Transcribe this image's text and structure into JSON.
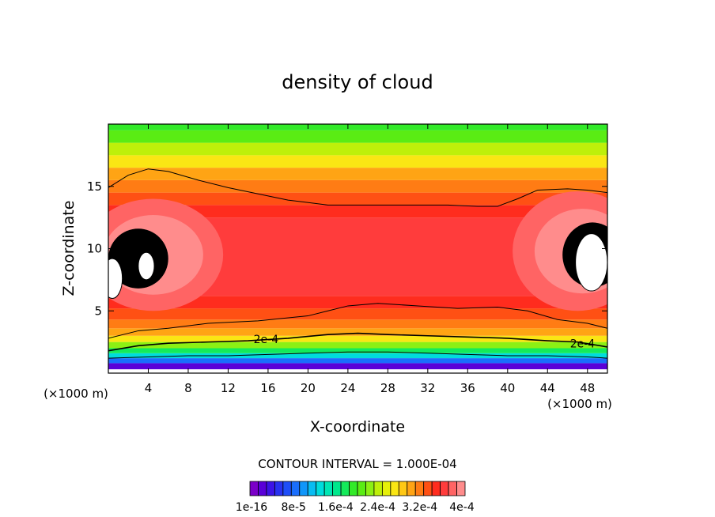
{
  "chart_data": {
    "type": "heatmap",
    "title": "density of cloud",
    "xlabel": "X-coordinate",
    "ylabel": "Z-coordinate",
    "x_unit_label": "(×1000 m)",
    "xlim": [
      0,
      50
    ],
    "ylim": [
      0,
      20
    ],
    "x_ticks": [
      4,
      8,
      12,
      16,
      20,
      24,
      28,
      32,
      36,
      40,
      44,
      48
    ],
    "y_ticks": [
      5,
      10,
      15
    ],
    "contour_interval_text": "CONTOUR INTERVAL = 1.000E-04",
    "contour_label": "2e-4",
    "colorbar_labels": [
      "1e-16",
      "8e-5",
      "1.6e-4",
      "2.4e-4",
      "3.2e-4",
      "4e-4"
    ],
    "colorbar_colors": [
      "#7b00c8",
      "#5a00d8",
      "#3c14e6",
      "#2832f0",
      "#1e4ef8",
      "#1a6efc",
      "#1096fa",
      "#08bcf2",
      "#00dcdc",
      "#00e6b4",
      "#00e88c",
      "#14ea5a",
      "#32ea28",
      "#5aec14",
      "#8cf014",
      "#bef00a",
      "#e6f00a",
      "#fae614",
      "#ffc814",
      "#ffa414",
      "#ff7c14",
      "#ff5014",
      "#ff2c1e",
      "#ff3c3c",
      "#ff6464",
      "#ff8c8c"
    ],
    "bands": [
      {
        "z": [
          0.3,
          0.8
        ],
        "level": 1
      },
      {
        "z": [
          0.8,
          1.2
        ],
        "level": 5
      },
      {
        "z": [
          1.2,
          1.6
        ],
        "level": 8
      },
      {
        "z": [
          1.6,
          2.0
        ],
        "level": 11
      },
      {
        "z": [
          2.0,
          2.5
        ],
        "level": 14
      },
      {
        "z": [
          2.5,
          3.0
        ],
        "level": 17
      },
      {
        "z": [
          3.0,
          3.6
        ],
        "level": 19
      },
      {
        "z": [
          3.6,
          4.3
        ],
        "level": 20
      },
      {
        "z": [
          4.3,
          5.2
        ],
        "level": 21
      },
      {
        "z": [
          5.2,
          6.2
        ],
        "level": 22
      },
      {
        "z": [
          6.2,
          12.5
        ],
        "level": 23
      },
      {
        "z": [
          12.5,
          13.5
        ],
        "level": 22
      },
      {
        "z": [
          13.5,
          14.5
        ],
        "level": 21
      },
      {
        "z": [
          14.5,
          15.5
        ],
        "level": 20
      },
      {
        "z": [
          15.5,
          16.5
        ],
        "level": 19
      },
      {
        "z": [
          16.5,
          17.5
        ],
        "level": 17
      },
      {
        "z": [
          17.5,
          18.5
        ],
        "level": 15
      },
      {
        "z": [
          18.5,
          19.5
        ],
        "level": 13
      },
      {
        "z": [
          19.5,
          20.0
        ],
        "level": 12
      }
    ],
    "side_lobes": [
      {
        "cx": 4.5,
        "cz": 9.5,
        "rx": 7.0,
        "rz": 4.5,
        "level": 24
      },
      {
        "cx": 4.5,
        "cz": 9.5,
        "rx": 5.0,
        "rz": 3.2,
        "level": 25
      },
      {
        "cx": 3.0,
        "cz": 9.2,
        "rx": 3.0,
        "rz": 2.4,
        "level": 26
      },
      {
        "cx": 47.0,
        "cz": 9.8,
        "rx": 6.5,
        "rz": 4.8,
        "level": 24
      },
      {
        "cx": 47.5,
        "cz": 9.8,
        "rx": 4.8,
        "rz": 3.4,
        "level": 25
      },
      {
        "cx": 48.5,
        "cz": 9.5,
        "rx": 3.0,
        "rz": 2.6,
        "level": 26
      }
    ],
    "white_holes": [
      {
        "cx": 3.8,
        "cz": 8.6,
        "rx": 0.8,
        "rz": 1.1
      },
      {
        "cx": 0.4,
        "cz": 7.6,
        "rx": 1.0,
        "rz": 1.6
      },
      {
        "cx": 48.4,
        "cz": 8.9,
        "rx": 1.6,
        "rz": 2.3
      }
    ],
    "contours": [
      {
        "x": [
          0,
          2,
          4,
          6,
          9,
          12,
          15,
          18,
          22,
          26,
          30,
          34,
          37,
          39,
          41,
          43,
          46,
          48,
          50
        ],
        "z": [
          14.9,
          15.9,
          16.4,
          16.2,
          15.5,
          14.9,
          14.4,
          13.9,
          13.5,
          13.5,
          13.5,
          13.5,
          13.4,
          13.4,
          14.0,
          14.7,
          14.8,
          14.7,
          14.5
        ]
      },
      {
        "x": [
          0,
          3,
          6,
          10,
          15,
          20,
          22,
          24,
          27,
          31,
          35,
          39,
          42,
          45,
          48,
          50
        ],
        "z": [
          2.8,
          3.4,
          3.6,
          4.0,
          4.2,
          4.6,
          5.0,
          5.4,
          5.6,
          5.4,
          5.2,
          5.3,
          5.0,
          4.3,
          4.0,
          3.6
        ]
      },
      {
        "x": [
          0,
          3,
          6,
          10,
          14,
          18,
          22,
          25,
          28,
          32,
          36,
          40,
          44,
          47,
          50
        ],
        "z": [
          1.8,
          2.2,
          2.4,
          2.5,
          2.6,
          2.8,
          3.1,
          3.2,
          3.1,
          3.0,
          2.9,
          2.8,
          2.6,
          2.5,
          2.1
        ]
      },
      {
        "x": [
          0,
          4,
          8,
          12,
          16,
          20,
          24,
          28,
          32,
          36,
          40,
          44,
          48,
          50
        ],
        "z": [
          1.2,
          1.3,
          1.4,
          1.4,
          1.5,
          1.6,
          1.7,
          1.7,
          1.6,
          1.5,
          1.4,
          1.4,
          1.3,
          1.2
        ]
      }
    ],
    "grid": false,
    "legend": "bottom-center colorbar"
  }
}
